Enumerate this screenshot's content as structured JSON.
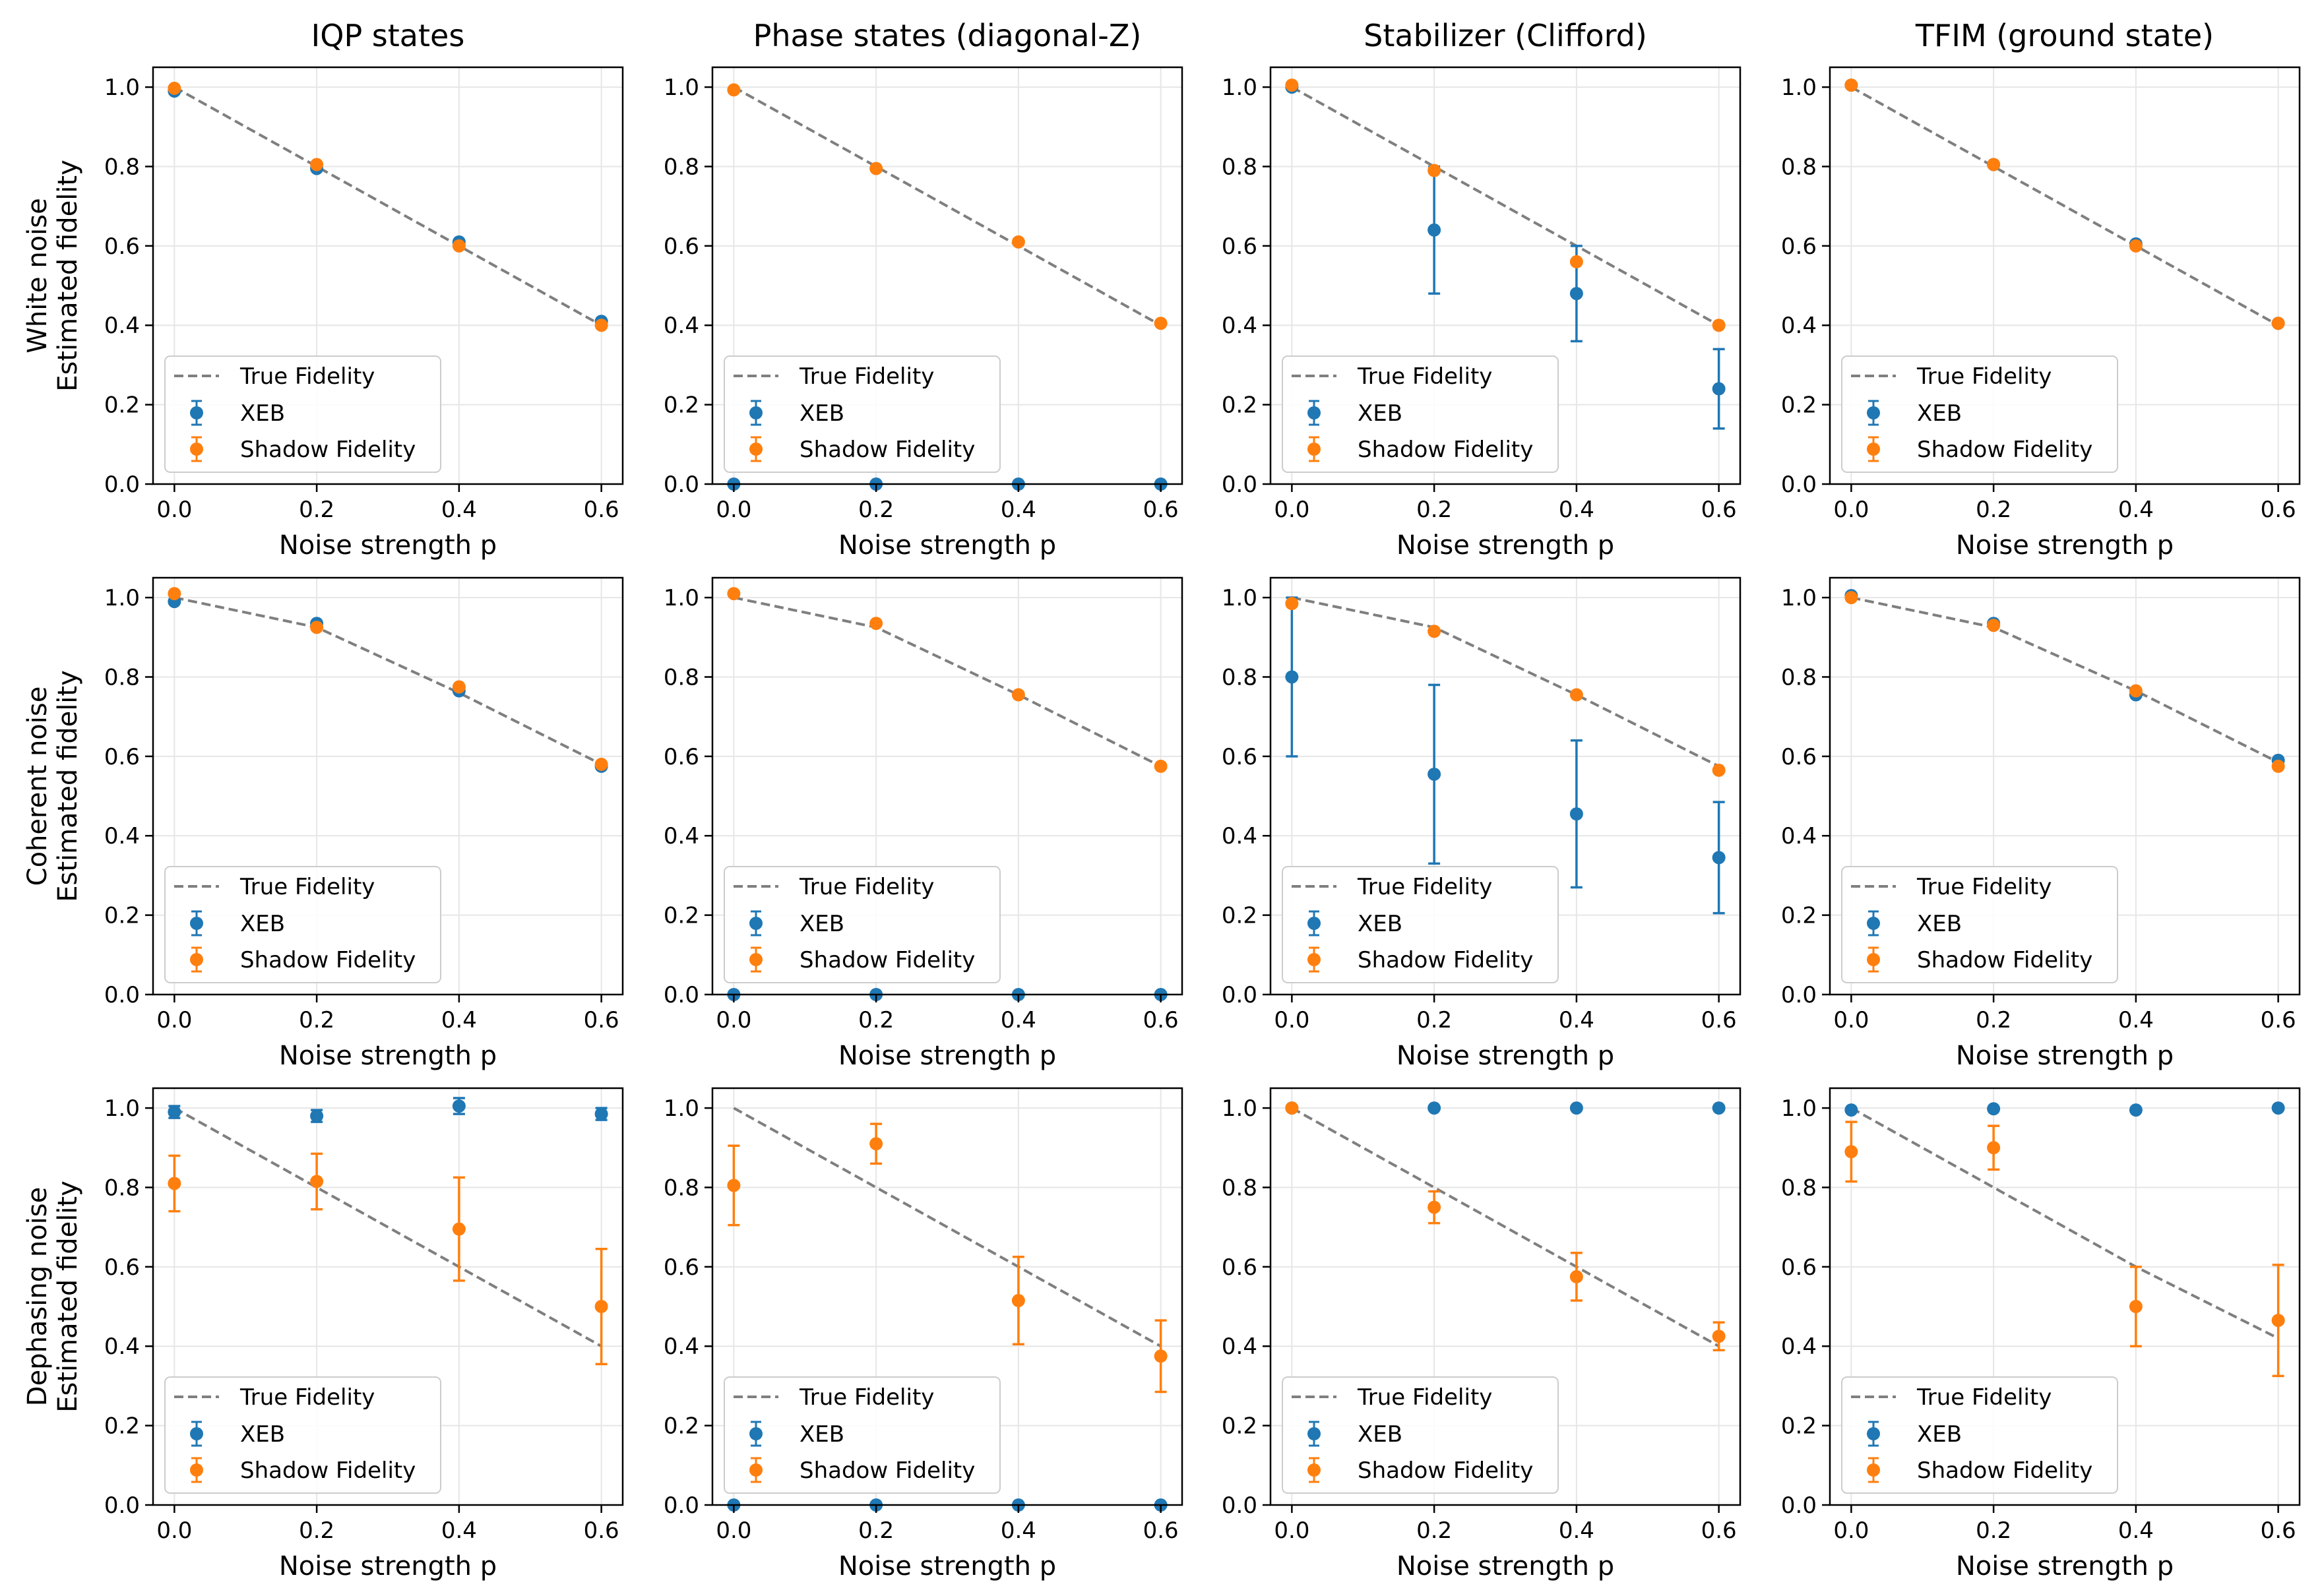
{
  "colors": {
    "xeb": "#1f77b4",
    "shadow": "#ff7f0e",
    "true_fidelity": "#7f7f7f",
    "grid": "#e6e6e6",
    "axes": "#000000"
  },
  "shared": {
    "xlabel": "Noise strength p",
    "ylabel": "Estimated fidelity",
    "x_ticks": [
      "0.0",
      "0.2",
      "0.4",
      "0.6"
    ],
    "y_ticks": [
      "0.0",
      "0.2",
      "0.4",
      "0.6",
      "0.8",
      "1.0"
    ],
    "xlim": [
      -0.03,
      0.63
    ],
    "ylim": [
      0.0,
      1.05
    ],
    "legend": {
      "true_fidelity": "True Fidelity",
      "xeb": "XEB",
      "shadow": "Shadow Fidelity"
    }
  },
  "column_titles": [
    "IQP states",
    "Phase states (diagonal-Z)",
    "Stabilizer (Clifford)",
    "TFIM (ground state)"
  ],
  "row_labels": [
    "White noise",
    "Coherent noise",
    "Dephasing noise"
  ],
  "chart_data": [
    {
      "type": "scatter",
      "row": 0,
      "col": 0,
      "title": "IQP states",
      "row_label": "White noise",
      "xlabel": "Noise strength p",
      "ylabel": "Estimated fidelity",
      "ylim": [
        0,
        1.05
      ],
      "grid": true,
      "legend_position": "lower-left",
      "x": [
        0,
        0.2,
        0.4,
        0.6
      ],
      "true_fidelity": [
        1.0,
        0.8,
        0.6,
        0.4
      ],
      "series": [
        {
          "name": "XEB",
          "values": [
            0.99,
            0.795,
            0.61,
            0.41
          ],
          "err": [
            0.008,
            0.008,
            0.008,
            0.008
          ]
        },
        {
          "name": "Shadow Fidelity",
          "values": [
            0.997,
            0.805,
            0.6,
            0.4
          ],
          "err": [
            0.006,
            0.006,
            0.006,
            0.006
          ]
        }
      ]
    },
    {
      "type": "scatter",
      "row": 0,
      "col": 1,
      "title": "Phase states (diagonal-Z)",
      "row_label": "White noise",
      "xlabel": "Noise strength p",
      "ylabel": "Estimated fidelity",
      "ylim": [
        0,
        1.05
      ],
      "grid": true,
      "legend_position": "lower-left",
      "x": [
        0,
        0.2,
        0.4,
        0.6
      ],
      "true_fidelity": [
        1.0,
        0.8,
        0.6,
        0.4
      ],
      "series": [
        {
          "name": "XEB",
          "values": [
            0,
            0,
            0,
            0
          ],
          "err": [
            0,
            0,
            0,
            0
          ]
        },
        {
          "name": "Shadow Fidelity",
          "values": [
            0.993,
            0.795,
            0.61,
            0.405
          ],
          "err": [
            0.005,
            0.005,
            0.005,
            0.005
          ]
        }
      ]
    },
    {
      "type": "scatter",
      "row": 0,
      "col": 2,
      "title": "Stabilizer (Clifford)",
      "row_label": "White noise",
      "xlabel": "Noise strength p",
      "ylabel": "Estimated fidelity",
      "ylim": [
        0,
        1.05
      ],
      "grid": true,
      "legend_position": "lower-left",
      "x": [
        0,
        0.2,
        0.4,
        0.6
      ],
      "true_fidelity": [
        1.0,
        0.8,
        0.6,
        0.4
      ],
      "series": [
        {
          "name": "XEB",
          "values": [
            1.0,
            0.64,
            0.48,
            0.24
          ],
          "err": [
            0.006,
            0.16,
            0.12,
            0.1
          ]
        },
        {
          "name": "Shadow Fidelity",
          "values": [
            1.005,
            0.79,
            0.56,
            0.4
          ],
          "err": [
            0.006,
            0.008,
            0.008,
            0.008
          ]
        }
      ]
    },
    {
      "type": "scatter",
      "row": 0,
      "col": 3,
      "title": "TFIM (ground state)",
      "row_label": "White noise",
      "xlabel": "Noise strength p",
      "ylabel": "Estimated fidelity",
      "ylim": [
        0,
        1.05
      ],
      "grid": true,
      "legend_position": "lower-left",
      "x": [
        0,
        0.2,
        0.4,
        0.6
      ],
      "true_fidelity": [
        1.0,
        0.8,
        0.6,
        0.4
      ],
      "series": [
        {
          "name": "XEB",
          "values": [
            1.005,
            0.805,
            0.605,
            0.405
          ],
          "err": [
            0.005,
            0.005,
            0.005,
            0.005
          ]
        },
        {
          "name": "Shadow Fidelity",
          "values": [
            1.005,
            0.805,
            0.6,
            0.405
          ],
          "err": [
            0.005,
            0.005,
            0.005,
            0.005
          ]
        }
      ]
    },
    {
      "type": "scatter",
      "row": 1,
      "col": 0,
      "title": "IQP states",
      "row_label": "Coherent noise",
      "xlabel": "Noise strength p",
      "ylabel": "Estimated fidelity",
      "ylim": [
        0,
        1.05
      ],
      "grid": true,
      "legend_position": "lower-left",
      "x": [
        0,
        0.2,
        0.4,
        0.6
      ],
      "true_fidelity": [
        1.0,
        0.925,
        0.76,
        0.58
      ],
      "series": [
        {
          "name": "XEB",
          "values": [
            0.99,
            0.935,
            0.765,
            0.575
          ],
          "err": [
            0.01,
            0.01,
            0.01,
            0.01
          ]
        },
        {
          "name": "Shadow Fidelity",
          "values": [
            1.01,
            0.925,
            0.775,
            0.58
          ],
          "err": [
            0.006,
            0.006,
            0.006,
            0.006
          ]
        }
      ]
    },
    {
      "type": "scatter",
      "row": 1,
      "col": 1,
      "title": "Phase states (diagonal-Z)",
      "row_label": "Coherent noise",
      "xlabel": "Noise strength p",
      "ylabel": "Estimated fidelity",
      "ylim": [
        0,
        1.05
      ],
      "grid": true,
      "legend_position": "lower-left",
      "x": [
        0,
        0.2,
        0.4,
        0.6
      ],
      "true_fidelity": [
        1.0,
        0.925,
        0.755,
        0.575
      ],
      "series": [
        {
          "name": "XEB",
          "values": [
            0,
            0,
            0,
            0
          ],
          "err": [
            0,
            0,
            0,
            0
          ]
        },
        {
          "name": "Shadow Fidelity",
          "values": [
            1.01,
            0.935,
            0.755,
            0.575
          ],
          "err": [
            0.005,
            0.005,
            0.005,
            0.005
          ]
        }
      ]
    },
    {
      "type": "scatter",
      "row": 1,
      "col": 2,
      "title": "Stabilizer (Clifford)",
      "row_label": "Coherent noise",
      "xlabel": "Noise strength p",
      "ylabel": "Estimated fidelity",
      "ylim": [
        0,
        1.05
      ],
      "grid": true,
      "legend_position": "lower-left",
      "x": [
        0,
        0.2,
        0.4,
        0.6
      ],
      "true_fidelity": [
        1.0,
        0.925,
        0.755,
        0.575
      ],
      "series": [
        {
          "name": "XEB",
          "values": [
            0.8,
            0.555,
            0.455,
            0.345
          ],
          "err": [
            0.2,
            0.225,
            0.185,
            0.14
          ]
        },
        {
          "name": "Shadow Fidelity",
          "values": [
            0.985,
            0.915,
            0.755,
            0.565
          ],
          "err": [
            0.006,
            0.006,
            0.006,
            0.006
          ]
        }
      ]
    },
    {
      "type": "scatter",
      "row": 1,
      "col": 3,
      "title": "TFIM (ground state)",
      "row_label": "Coherent noise",
      "xlabel": "Noise strength p",
      "ylabel": "Estimated fidelity",
      "ylim": [
        0,
        1.05
      ],
      "grid": true,
      "legend_position": "lower-left",
      "x": [
        0,
        0.2,
        0.4,
        0.6
      ],
      "true_fidelity": [
        1.0,
        0.925,
        0.765,
        0.585
      ],
      "series": [
        {
          "name": "XEB",
          "values": [
            1.005,
            0.935,
            0.755,
            0.59
          ],
          "err": [
            0.005,
            0.005,
            0.005,
            0.005
          ]
        },
        {
          "name": "Shadow Fidelity",
          "values": [
            1.0,
            0.93,
            0.765,
            0.575
          ],
          "err": [
            0.005,
            0.005,
            0.005,
            0.005
          ]
        }
      ]
    },
    {
      "type": "scatter",
      "row": 2,
      "col": 0,
      "title": "IQP states",
      "row_label": "Dephasing noise",
      "xlabel": "Noise strength p",
      "ylabel": "Estimated fidelity",
      "ylim": [
        0,
        1.05
      ],
      "grid": true,
      "legend_position": "lower-left",
      "x": [
        0,
        0.2,
        0.4,
        0.6
      ],
      "true_fidelity": [
        1.0,
        0.8,
        0.6,
        0.4
      ],
      "series": [
        {
          "name": "XEB",
          "values": [
            0.99,
            0.98,
            1.005,
            0.985
          ],
          "err": [
            0.015,
            0.015,
            0.02,
            0.015
          ]
        },
        {
          "name": "Shadow Fidelity",
          "values": [
            0.81,
            0.815,
            0.695,
            0.5
          ],
          "err": [
            0.07,
            0.07,
            0.13,
            0.145
          ]
        }
      ]
    },
    {
      "type": "scatter",
      "row": 2,
      "col": 1,
      "title": "Phase states (diagonal-Z)",
      "row_label": "Dephasing noise",
      "xlabel": "Noise strength p",
      "ylabel": "Estimated fidelity",
      "ylim": [
        0,
        1.05
      ],
      "grid": true,
      "legend_position": "lower-left",
      "x": [
        0,
        0.2,
        0.4,
        0.6
      ],
      "true_fidelity": [
        1.0,
        0.8,
        0.6,
        0.4
      ],
      "series": [
        {
          "name": "XEB",
          "values": [
            0,
            0,
            0,
            0
          ],
          "err": [
            0,
            0,
            0,
            0
          ]
        },
        {
          "name": "Shadow Fidelity",
          "values": [
            0.805,
            0.91,
            0.515,
            0.375
          ],
          "err": [
            0.1,
            0.05,
            0.11,
            0.09
          ]
        }
      ]
    },
    {
      "type": "scatter",
      "row": 2,
      "col": 2,
      "title": "Stabilizer (Clifford)",
      "row_label": "Dephasing noise",
      "xlabel": "Noise strength p",
      "ylabel": "Estimated fidelity",
      "ylim": [
        0,
        1.05
      ],
      "grid": true,
      "legend_position": "lower-left",
      "x": [
        0,
        0.2,
        0.4,
        0.6
      ],
      "true_fidelity": [
        1.0,
        0.8,
        0.6,
        0.4
      ],
      "series": [
        {
          "name": "XEB",
          "values": [
            1.0,
            1.0,
            1.0,
            1.0
          ],
          "err": [
            0.004,
            0.004,
            0.004,
            0.004
          ]
        },
        {
          "name": "Shadow Fidelity",
          "values": [
            1.0,
            0.75,
            0.575,
            0.425
          ],
          "err": [
            0.005,
            0.04,
            0.06,
            0.035
          ]
        }
      ]
    },
    {
      "type": "scatter",
      "row": 2,
      "col": 3,
      "title": "TFIM (ground state)",
      "row_label": "Dephasing noise",
      "xlabel": "Noise strength p",
      "ylabel": "Estimated fidelity",
      "ylim": [
        0,
        1.05
      ],
      "grid": true,
      "legend_position": "lower-left",
      "x": [
        0,
        0.2,
        0.4,
        0.6
      ],
      "true_fidelity": [
        1.0,
        0.8,
        0.6,
        0.42
      ],
      "series": [
        {
          "name": "XEB",
          "values": [
            0.995,
            0.998,
            0.995,
            1.0
          ],
          "err": [
            0.004,
            0.004,
            0.004,
            0.004
          ]
        },
        {
          "name": "Shadow Fidelity",
          "values": [
            0.89,
            0.9,
            0.5,
            0.465
          ],
          "err": [
            0.075,
            0.055,
            0.1,
            0.14
          ]
        }
      ]
    }
  ]
}
